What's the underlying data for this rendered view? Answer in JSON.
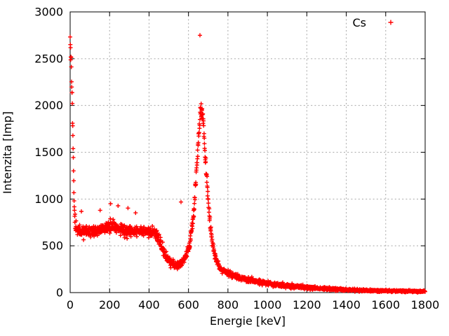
{
  "figure": {
    "background": "#ffffff"
  },
  "chart_data": {
    "type": "scatter",
    "title": "",
    "xlabel": "Energie [keV]",
    "ylabel": "Intenzita [Imp]",
    "xlim": [
      0,
      1800
    ],
    "ylim": [
      0,
      3000
    ],
    "xticks": [
      0,
      200,
      400,
      600,
      800,
      1000,
      1200,
      1400,
      1600,
      1800
    ],
    "yticks": [
      0,
      500,
      1000,
      1500,
      2000,
      2500,
      3000
    ],
    "grid": "dotted-major-both-axes",
    "frame_color": "#000000",
    "grid_color": "#a8a8a8",
    "text_color": "#000000",
    "legend": {
      "position": "top-right-inside",
      "label": "Cs",
      "marker": "plus",
      "marker_color": "#ff0000"
    },
    "series": [
      {
        "name": "Cs",
        "marker": "plus",
        "color": "#ff0000",
        "x_step_kev": 1,
        "noise": {
          "seed": 20127,
          "scale": 1.15,
          "clamp_sigma": 3.2
        },
        "envelope_points": [
          [
            0,
            2700
          ],
          [
            3,
            2580
          ],
          [
            5,
            2430
          ],
          [
            7,
            2290
          ],
          [
            9,
            2150
          ],
          [
            11,
            1990
          ],
          [
            13,
            1790
          ],
          [
            15,
            1540
          ],
          [
            17,
            1290
          ],
          [
            19,
            1060
          ],
          [
            21,
            900
          ],
          [
            24,
            780
          ],
          [
            28,
            705
          ],
          [
            35,
            668
          ],
          [
            50,
            652
          ],
          [
            65,
            658
          ],
          [
            80,
            650
          ],
          [
            95,
            656
          ],
          [
            110,
            650
          ],
          [
            125,
            656
          ],
          [
            140,
            662
          ],
          [
            155,
            672
          ],
          [
            170,
            682
          ],
          [
            185,
            696
          ],
          [
            200,
            710
          ],
          [
            215,
            714
          ],
          [
            230,
            704
          ],
          [
            245,
            690
          ],
          [
            260,
            676
          ],
          [
            275,
            666
          ],
          [
            290,
            660
          ],
          [
            305,
            656
          ],
          [
            320,
            660
          ],
          [
            335,
            664
          ],
          [
            350,
            660
          ],
          [
            365,
            655
          ],
          [
            380,
            650
          ],
          [
            395,
            646
          ],
          [
            410,
            642
          ],
          [
            420,
            636
          ],
          [
            430,
            625
          ],
          [
            445,
            585
          ],
          [
            460,
            520
          ],
          [
            475,
            445
          ],
          [
            490,
            380
          ],
          [
            505,
            332
          ],
          [
            520,
            306
          ],
          [
            535,
            296
          ],
          [
            550,
            300
          ],
          [
            565,
            322
          ],
          [
            580,
            362
          ],
          [
            592,
            420
          ],
          [
            602,
            492
          ],
          [
            612,
            600
          ],
          [
            622,
            760
          ],
          [
            630,
            950
          ],
          [
            638,
            1200
          ],
          [
            646,
            1500
          ],
          [
            652,
            1720
          ],
          [
            658,
            1870
          ],
          [
            663,
            1955
          ],
          [
            668,
            1950
          ],
          [
            674,
            1830
          ],
          [
            680,
            1650
          ],
          [
            686,
            1440
          ],
          [
            693,
            1200
          ],
          [
            700,
            980
          ],
          [
            707,
            800
          ],
          [
            714,
            650
          ],
          [
            722,
            520
          ],
          [
            730,
            430
          ],
          [
            740,
            352
          ],
          [
            752,
            292
          ],
          [
            765,
            252
          ],
          [
            780,
            226
          ],
          [
            800,
            206
          ],
          [
            830,
            182
          ],
          [
            860,
            160
          ],
          [
            900,
            138
          ],
          [
            950,
            116
          ],
          [
            1000,
            98
          ],
          [
            1050,
            83
          ],
          [
            1100,
            71
          ],
          [
            1150,
            62
          ],
          [
            1200,
            54
          ],
          [
            1250,
            47
          ],
          [
            1300,
            41
          ],
          [
            1350,
            36
          ],
          [
            1400,
            31
          ],
          [
            1450,
            27
          ],
          [
            1500,
            24
          ],
          [
            1550,
            21
          ],
          [
            1600,
            19
          ],
          [
            1650,
            17
          ],
          [
            1700,
            15
          ],
          [
            1750,
            14
          ],
          [
            1800,
            13
          ]
        ],
        "outlier_points": [
          [
            658,
            2750
          ],
          [
            57,
            868
          ],
          [
            152,
            880
          ],
          [
            205,
            950
          ],
          [
            243,
            928
          ],
          [
            293,
            903
          ],
          [
            332,
            852
          ],
          [
            562,
            968
          ]
        ]
      }
    ]
  }
}
